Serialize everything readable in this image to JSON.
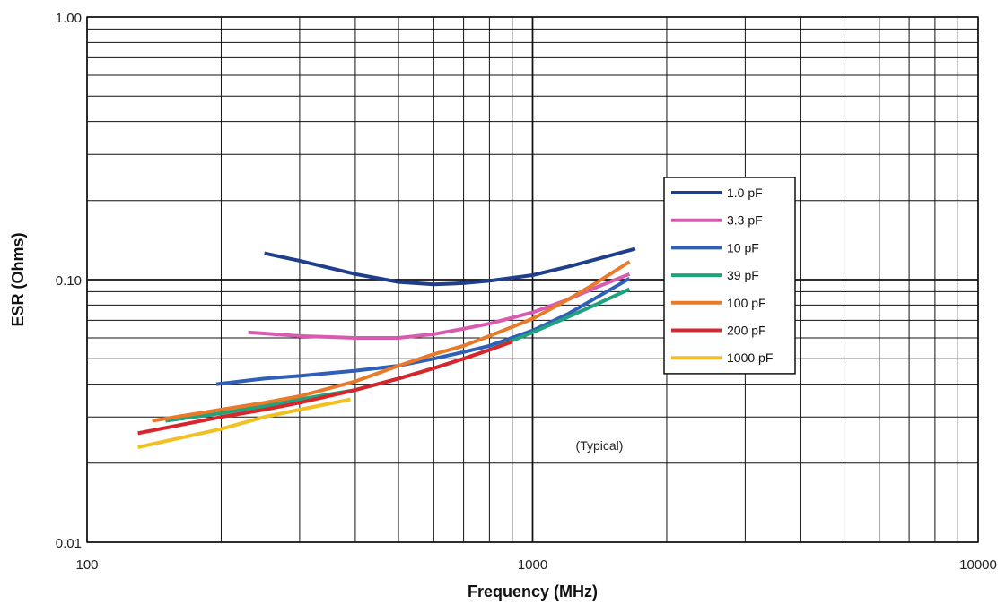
{
  "chart_data": {
    "type": "line",
    "title": "",
    "xlabel": "Frequency (MHz)",
    "ylabel": "ESR (Ohms)",
    "x_scale": "log",
    "y_scale": "log",
    "xlim": [
      100,
      10000
    ],
    "ylim": [
      0.01,
      1.0
    ],
    "x_tick_labels": [
      "100",
      "1000",
      "10000"
    ],
    "y_tick_labels": [
      "0.01",
      "0.10",
      "1.00"
    ],
    "grid": true,
    "legend_position": "right",
    "annotation": "(Typical)",
    "series": [
      {
        "name": "1.0 pF",
        "color": "#1f3f8c",
        "x": [
          250,
          300,
          400,
          500,
          600,
          700,
          800,
          1000,
          1200,
          1400,
          1700
        ],
        "y": [
          0.126,
          0.118,
          0.105,
          0.098,
          0.096,
          0.097,
          0.099,
          0.104,
          0.112,
          0.12,
          0.131
        ]
      },
      {
        "name": "3.3 pF",
        "color": "#d95bb0",
        "x": [
          230,
          300,
          400,
          500,
          600,
          700,
          800,
          1000,
          1200,
          1400,
          1650
        ],
        "y": [
          0.063,
          0.061,
          0.06,
          0.06,
          0.062,
          0.065,
          0.068,
          0.075,
          0.084,
          0.094,
          0.105
        ]
      },
      {
        "name": "10 pF",
        "color": "#2f5fb8",
        "x": [
          195,
          250,
          300,
          400,
          500,
          600,
          700,
          800,
          1000,
          1200,
          1400,
          1650
        ],
        "y": [
          0.04,
          0.042,
          0.043,
          0.045,
          0.047,
          0.05,
          0.053,
          0.056,
          0.064,
          0.074,
          0.086,
          0.101
        ]
      },
      {
        "name": "39 pF",
        "color": "#1fa37c",
        "x": [
          150,
          200,
          250,
          300,
          400,
          500,
          600,
          700,
          800,
          1000,
          1200,
          1400,
          1650
        ],
        "y": [
          0.029,
          0.031,
          0.033,
          0.035,
          0.038,
          0.042,
          0.046,
          0.05,
          0.054,
          0.063,
          0.072,
          0.081,
          0.092
        ]
      },
      {
        "name": "100 pF",
        "color": "#e87a2a",
        "x": [
          140,
          200,
          250,
          300,
          400,
          500,
          600,
          700,
          800,
          1000,
          1200,
          1400,
          1650
        ],
        "y": [
          0.029,
          0.032,
          0.034,
          0.036,
          0.041,
          0.047,
          0.052,
          0.056,
          0.061,
          0.071,
          0.084,
          0.098,
          0.117
        ]
      },
      {
        "name": "200 pF",
        "color": "#d8252b",
        "x": [
          130,
          200,
          250,
          300,
          400,
          500,
          600,
          700,
          800,
          900
        ],
        "y": [
          0.026,
          0.03,
          0.032,
          0.034,
          0.038,
          0.042,
          0.046,
          0.05,
          0.054,
          0.058
        ]
      },
      {
        "name": "1000 pF",
        "color": "#f2c024",
        "x": [
          130,
          200,
          250,
          300,
          390
        ],
        "y": [
          0.023,
          0.027,
          0.03,
          0.032,
          0.035
        ]
      }
    ]
  }
}
